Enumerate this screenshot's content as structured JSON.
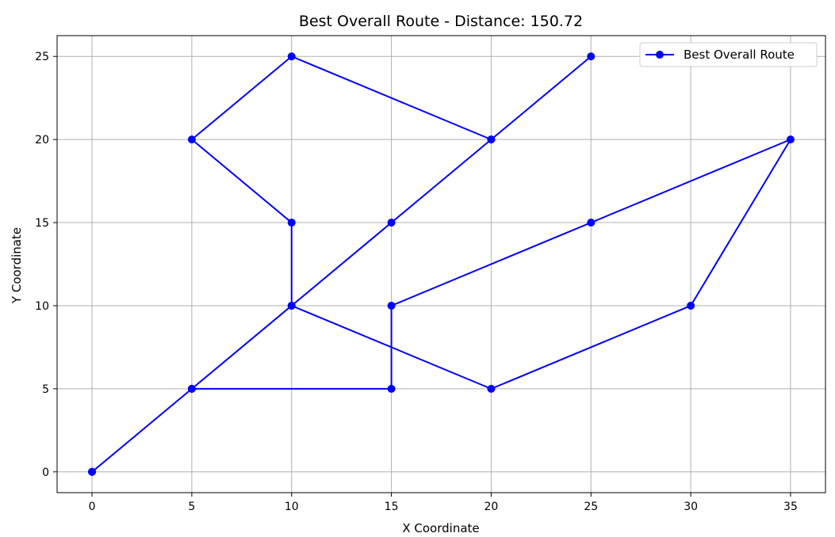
{
  "chart_data": {
    "type": "line",
    "title": "Best Overall Route - Distance: 150.72",
    "xlabel": "X Coordinate",
    "ylabel": "Y Coordinate",
    "xlim": [
      -1.75,
      36.75
    ],
    "ylim": [
      -1.25,
      26.25
    ],
    "xticks": [
      0,
      5,
      10,
      15,
      20,
      25,
      30,
      35
    ],
    "yticks": [
      0,
      5,
      10,
      15,
      20,
      25
    ],
    "grid": true,
    "legend": {
      "placement": "top-right",
      "entries": [
        "Best Overall Route"
      ]
    },
    "series": [
      {
        "name": "Best Overall Route",
        "color": "#0000ff",
        "marker": "circle",
        "points": [
          [
            0,
            0
          ],
          [
            5,
            5
          ],
          [
            10,
            10
          ],
          [
            10,
            15
          ],
          [
            5,
            20
          ],
          [
            10,
            25
          ],
          [
            20,
            20
          ],
          [
            25,
            25
          ],
          [
            20,
            20
          ],
          [
            15,
            15
          ],
          [
            10,
            10
          ],
          [
            20,
            5
          ],
          [
            30,
            10
          ],
          [
            35,
            20
          ],
          [
            25,
            15
          ],
          [
            15,
            10
          ],
          [
            15,
            5
          ],
          [
            5,
            5
          ],
          [
            0,
            0
          ]
        ]
      }
    ]
  }
}
